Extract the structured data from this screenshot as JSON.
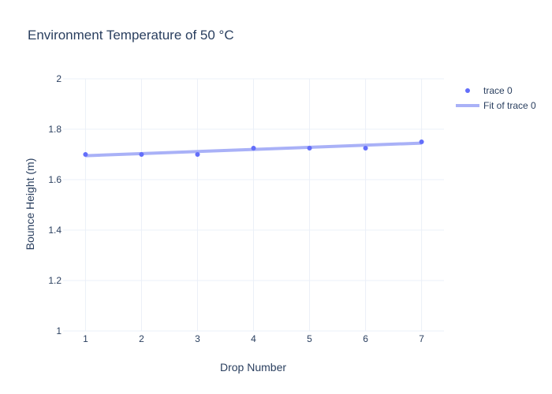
{
  "chart_data": {
    "type": "scatter",
    "title": "Environment Temperature of 50 °C",
    "xlabel": "Drop Number",
    "ylabel": "Bounce Height (m)",
    "xlim": [
      0.6,
      7.4
    ],
    "ylim": [
      1,
      2
    ],
    "x_ticks": [
      "1",
      "2",
      "3",
      "4",
      "5",
      "6",
      "7"
    ],
    "y_ticks": [
      "1",
      "1.2",
      "1.4",
      "1.6",
      "1.8",
      "2"
    ],
    "grid": true,
    "legend_position": "top-right",
    "series": [
      {
        "name": "trace 0",
        "mode": "markers",
        "color": "#636efa",
        "x": [
          1,
          2,
          3,
          4,
          5,
          6,
          7
        ],
        "y": [
          1.7,
          1.7,
          1.7,
          1.725,
          1.725,
          1.725,
          1.75
        ]
      },
      {
        "name": "Fit of trace 0",
        "mode": "line",
        "color": "#a9b1f7",
        "x": [
          1,
          7
        ],
        "y": [
          1.695,
          1.745
        ]
      }
    ]
  }
}
